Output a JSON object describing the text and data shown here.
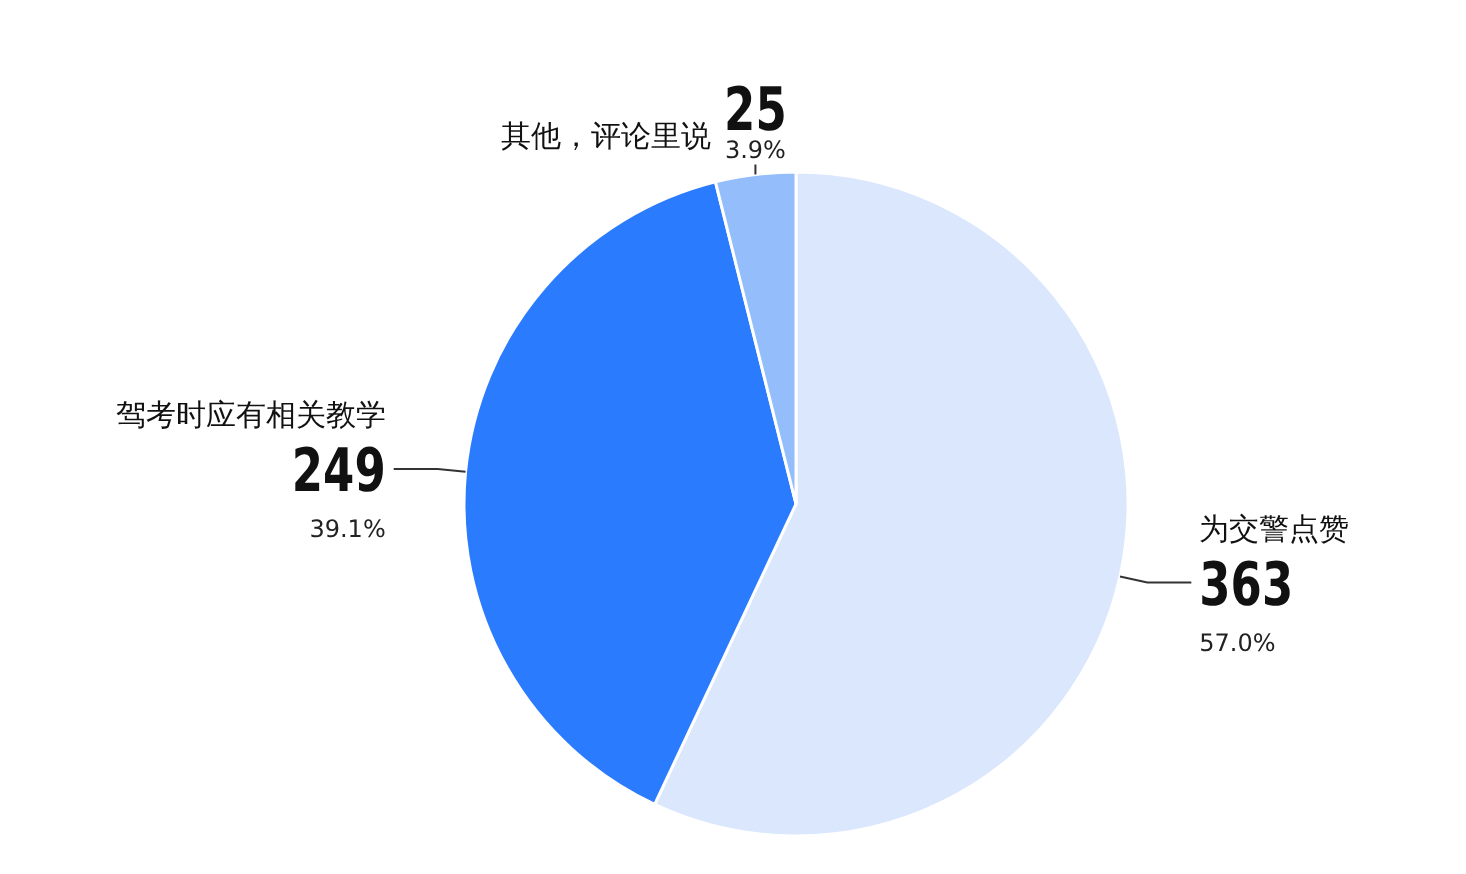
{
  "chart_data": {
    "type": "pie",
    "categories": [
      "为交警点赞",
      "驾考时应有相关教学",
      "其他，评论里说"
    ],
    "values": [
      57.0,
      39.1,
      3.9
    ],
    "colors": [
      "#dae7fc",
      "#2a7bfd",
      "#93bdfb"
    ],
    "value_labels": [
      "57.0%",
      "39.1%",
      "3.9%"
    ],
    "annotations": [
      {
        "text": "363",
        "x": "为交警点赞"
      },
      {
        "text": "249",
        "x": "驾考时应有相关教学"
      },
      {
        "text": "25",
        "x": "其他，评论里说"
      }
    ]
  }
}
